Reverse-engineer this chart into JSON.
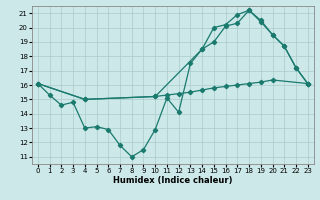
{
  "xlabel": "Humidex (Indice chaleur)",
  "bg_color": "#cce8e8",
  "grid_color": "#aacccc",
  "line_color": "#1a7a6e",
  "xlim": [
    -0.5,
    23.5
  ],
  "ylim": [
    10.5,
    21.5
  ],
  "xticks": [
    0,
    1,
    2,
    3,
    4,
    5,
    6,
    7,
    8,
    9,
    10,
    11,
    12,
    13,
    14,
    15,
    16,
    17,
    18,
    19,
    20,
    21,
    22,
    23
  ],
  "yticks": [
    11,
    12,
    13,
    14,
    15,
    16,
    17,
    18,
    19,
    20,
    21
  ],
  "line1_x": [
    0,
    1,
    2,
    3,
    4,
    5,
    6,
    7,
    8,
    9,
    10,
    11,
    12,
    13,
    14,
    15,
    16,
    17,
    18,
    19,
    20,
    21,
    22,
    23
  ],
  "line1_y": [
    16.1,
    15.3,
    14.6,
    14.8,
    13.0,
    13.1,
    12.9,
    11.8,
    11.0,
    11.5,
    12.9,
    15.1,
    14.1,
    17.5,
    18.5,
    19.0,
    20.1,
    20.3,
    21.2,
    20.4,
    19.5,
    18.7,
    17.2,
    16.1
  ],
  "line2_x": [
    0,
    4,
    10,
    11,
    12,
    13,
    14,
    15,
    16,
    17,
    18,
    19,
    20,
    23
  ],
  "line2_y": [
    16.1,
    15.0,
    15.2,
    15.3,
    15.4,
    15.5,
    15.65,
    15.8,
    15.9,
    16.0,
    16.1,
    16.2,
    16.35,
    16.1
  ],
  "line3_x": [
    0,
    4,
    10,
    14,
    15,
    16,
    17,
    18,
    19,
    20,
    21,
    22,
    23
  ],
  "line3_y": [
    16.1,
    15.0,
    15.2,
    18.5,
    20.0,
    20.2,
    20.9,
    21.2,
    20.5,
    19.5,
    18.7,
    17.2,
    16.1
  ]
}
